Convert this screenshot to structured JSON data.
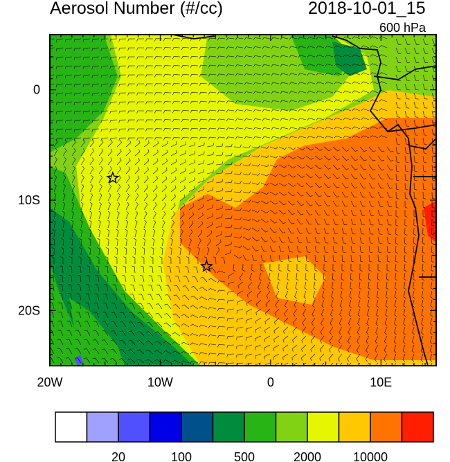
{
  "title": "Aerosol Number (#/cc)",
  "timestamp": "2018-10-01_15",
  "pressure_level": "600 hPa",
  "map": {
    "lon_range": [
      -20,
      15
    ],
    "lat_range": [
      -25,
      5
    ],
    "lon_ticks": [
      {
        "value": -20,
        "label": "20W"
      },
      {
        "value": -10,
        "label": "10W"
      },
      {
        "value": 0,
        "label": "0"
      },
      {
        "value": 10,
        "label": "10E"
      }
    ],
    "lat_ticks": [
      {
        "value": 0,
        "label": "0"
      },
      {
        "value": -10,
        "label": "10S"
      },
      {
        "value": -20,
        "label": "20S"
      }
    ],
    "markers": [
      {
        "name": "star",
        "lon": -14.3,
        "lat": -8.0
      },
      {
        "name": "star",
        "lon": -5.8,
        "lat": -16.0
      }
    ]
  },
  "colorbar": {
    "colors": [
      "#ffffff",
      "#a0a0ff",
      "#5050ff",
      "#0000e8",
      "#00508c",
      "#008c3c",
      "#28b414",
      "#82d214",
      "#e6f500",
      "#ffc800",
      "#ff7300",
      "#ff1e00"
    ],
    "labels": [
      {
        "after_box": 2,
        "text": "20"
      },
      {
        "after_box": 4,
        "text": "100"
      },
      {
        "after_box": 6,
        "text": "500"
      },
      {
        "after_box": 8,
        "text": "2000"
      },
      {
        "after_box": 10,
        "text": "10000"
      }
    ]
  }
}
